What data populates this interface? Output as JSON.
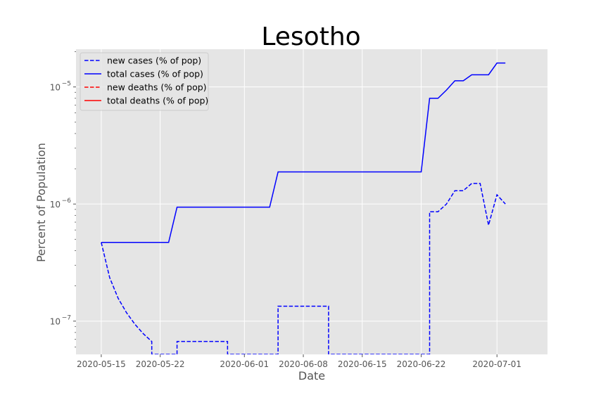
{
  "chart_data": {
    "type": "line",
    "title": "Lesotho",
    "xlabel": "Date",
    "ylabel": "Percent of Population",
    "yscale": "log",
    "ylim": [
      5.2e-08,
      2.1e-05
    ],
    "xlim": [
      "2020-05-12",
      "2020-07-07"
    ],
    "x_ticks": [
      "2020-05-15",
      "2020-05-22",
      "2020-06-01",
      "2020-06-08",
      "2020-06-15",
      "2020-06-22",
      "2020-07-01"
    ],
    "x_tick_labels": [
      "2020-05-15",
      "2020-05-22",
      "2020-06-01",
      "2020-06-08",
      "2020-06-15",
      "2020-06-22",
      "2020-07-01"
    ],
    "y_ticks": [
      1e-07,
      1e-06,
      1e-05
    ],
    "y_tick_labels": [
      {
        "base": "10",
        "exp": "−7"
      },
      {
        "base": "10",
        "exp": "−6"
      },
      {
        "base": "10",
        "exp": "−5"
      }
    ],
    "grid": true,
    "legend_position": "top-left",
    "series": [
      {
        "name": "new cases (% of pop)",
        "color": "#0000ff",
        "style": "dashed",
        "points": [
          [
            "2020-05-15",
            4.7e-07
          ],
          [
            "2020-05-16",
            2.35e-07
          ],
          [
            "2020-05-17",
            1.57e-07
          ],
          [
            "2020-05-18",
            1.18e-07
          ],
          [
            "2020-05-19",
            9.4e-08
          ],
          [
            "2020-05-20",
            7.8e-08
          ],
          [
            "2020-05-21",
            6.7e-08
          ],
          [
            "2020-05-21",
            5.2e-08
          ],
          [
            "2020-05-24",
            5.2e-08
          ],
          [
            "2020-05-24",
            6.7e-08
          ],
          [
            "2020-05-30",
            6.7e-08
          ],
          [
            "2020-05-30",
            5.2e-08
          ],
          [
            "2020-06-05",
            5.2e-08
          ],
          [
            "2020-06-05",
            1.34e-07
          ],
          [
            "2020-06-11",
            1.34e-07
          ],
          [
            "2020-06-11",
            5.2e-08
          ],
          [
            "2020-06-23",
            5.2e-08
          ],
          [
            "2020-06-23",
            8.6e-07
          ],
          [
            "2020-06-24",
            8.6e-07
          ],
          [
            "2020-06-25",
            1e-06
          ],
          [
            "2020-06-26",
            1.3e-06
          ],
          [
            "2020-06-27",
            1.3e-06
          ],
          [
            "2020-06-28",
            1.5e-06
          ],
          [
            "2020-06-29",
            1.5e-06
          ],
          [
            "2020-06-30",
            6.6e-07
          ],
          [
            "2020-07-01",
            1.2e-06
          ],
          [
            "2020-07-02",
            1e-06
          ]
        ]
      },
      {
        "name": "total cases (% of pop)",
        "color": "#0000ff",
        "style": "solid",
        "points": [
          [
            "2020-05-15",
            4.7e-07
          ],
          [
            "2020-05-23",
            4.7e-07
          ],
          [
            "2020-05-24",
            9.4e-07
          ],
          [
            "2020-06-04",
            9.4e-07
          ],
          [
            "2020-06-05",
            1.88e-06
          ],
          [
            "2020-06-22",
            1.88e-06
          ],
          [
            "2020-06-23",
            8e-06
          ],
          [
            "2020-06-24",
            8e-06
          ],
          [
            "2020-06-25",
            9.4e-06
          ],
          [
            "2020-06-26",
            1.13e-05
          ],
          [
            "2020-06-27",
            1.13e-05
          ],
          [
            "2020-06-28",
            1.27e-05
          ],
          [
            "2020-06-30",
            1.27e-05
          ],
          [
            "2020-07-01",
            1.6e-05
          ],
          [
            "2020-07-02",
            1.6e-05
          ]
        ]
      },
      {
        "name": "new deaths (% of pop)",
        "color": "#ff0000",
        "style": "dashed",
        "points": []
      },
      {
        "name": "total deaths (% of pop)",
        "color": "#ff0000",
        "style": "solid",
        "points": []
      }
    ]
  }
}
